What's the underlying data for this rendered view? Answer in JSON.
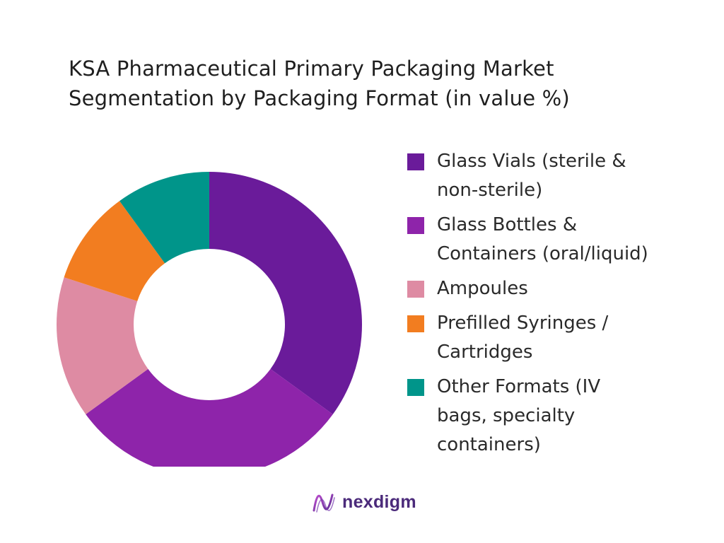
{
  "title_lines": [
    "KSA Pharmaceutical Primary Packaging Market",
    "Segmentation by Packaging Format  (in value %)"
  ],
  "chart_data": {
    "type": "pie",
    "donut": true,
    "title": "KSA Pharmaceutical Primary Packaging Market Segmentation by Packaging Format  (in value %)",
    "legend_position": "right",
    "categories": [
      "Glass Vials (sterile & non-sterile)",
      "Glass Bottles & Containers (oral/liquid)",
      "Ampoules",
      "Prefilled Syringes / Cartridges",
      "Other Formats (IV bags, specialty containers)"
    ],
    "values": [
      35,
      30,
      15,
      10,
      10
    ],
    "colors": [
      "#6a1b9a",
      "#8e24aa",
      "#de8ba3",
      "#f27d20",
      "#00958a"
    ]
  },
  "logo": {
    "text": "nexdigm",
    "color": "#4b2a7a"
  }
}
